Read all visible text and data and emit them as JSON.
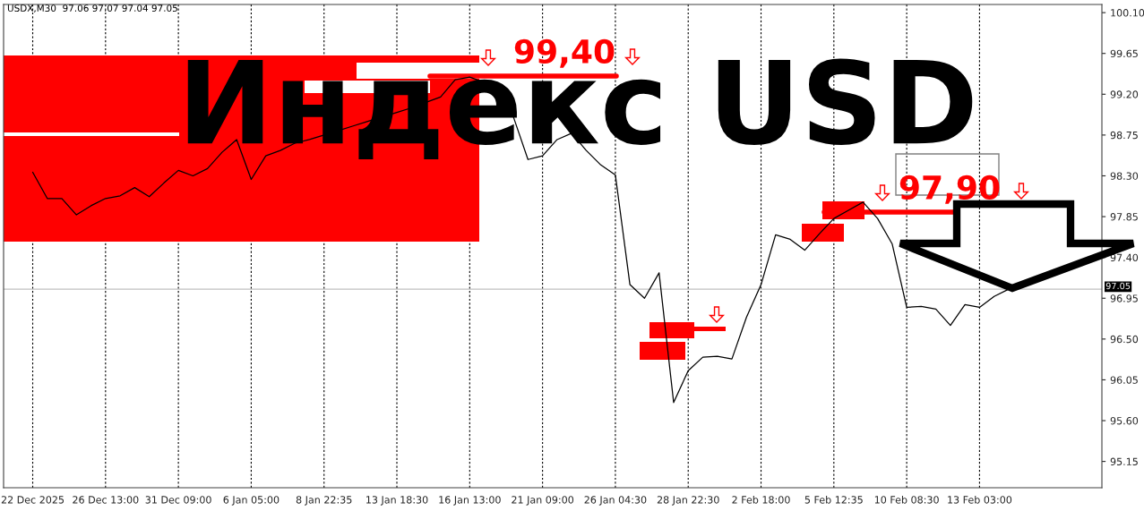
{
  "chart_data": {
    "type": "line",
    "title": "Индекс USD",
    "subtitle": "USDX,M30  97.06 97.07 97.04 97.05",
    "categories": [
      "22 Dec 2025",
      null,
      null,
      null,
      null,
      "26 Dec 13:00",
      null,
      null,
      null,
      null,
      "31 Dec 09:00",
      null,
      null,
      null,
      null,
      "6 Jan 05:00",
      null,
      null,
      null,
      null,
      "8 Jan 22:35",
      null,
      null,
      null,
      null,
      "13 Jan 18:30",
      null,
      null,
      null,
      null,
      "16 Jan 13:00",
      null,
      null,
      null,
      null,
      "21 Jan 09:00",
      null,
      null,
      null,
      null,
      "26 Jan 04:30",
      null,
      null,
      null,
      null,
      "28 Jan 22:30",
      null,
      null,
      null,
      null,
      "2 Feb 18:00",
      null,
      null,
      null,
      null,
      "5 Feb 12:35",
      null,
      null,
      null,
      null,
      "10 Feb 08:30",
      null,
      null,
      null,
      null,
      "13 Feb 03:00",
      null,
      null
    ],
    "series": [
      {
        "color": "#000000",
        "values": [
          98.34,
          98.05,
          98.05,
          97.87,
          97.97,
          98.05,
          98.08,
          98.17,
          98.07,
          98.22,
          98.36,
          98.3,
          98.38,
          98.56,
          98.7,
          98.26,
          98.52,
          98.58,
          98.66,
          98.7,
          98.75,
          98.8,
          98.85,
          98.9,
          98.95,
          99.0,
          99.05,
          99.11,
          99.17,
          99.36,
          99.39,
          99.33,
          99.12,
          98.95,
          98.48,
          98.52,
          98.7,
          98.77,
          98.58,
          98.42,
          98.31,
          97.1,
          96.95,
          97.23,
          95.8,
          96.15,
          96.3,
          96.31,
          96.28,
          96.74,
          97.1,
          97.65,
          97.6,
          97.48,
          97.66,
          97.83,
          97.92,
          98.01,
          97.83,
          97.55,
          96.85,
          96.86,
          96.83,
          96.65,
          96.88,
          96.85,
          96.97,
          97.05
        ]
      }
    ],
    "ylim": [
      94.86,
      100.19
    ],
    "yticks": [
      {
        "value": 100.1,
        "label": "100.10"
      },
      99.65,
      {
        "value": 99.2,
        "label": "99.20"
      },
      98.75,
      {
        "value": 98.3,
        "label": "98.30"
      },
      97.85,
      {
        "value": 97.4,
        "label": "97.40"
      },
      96.95,
      {
        "value": 96.5,
        "label": "96.50"
      },
      96.05,
      {
        "value": 95.6,
        "label": "95.60"
      },
      95.15
    ],
    "ref_lines": [
      {
        "axis": "y",
        "value": 97.05,
        "label": "97.05",
        "color": "#c0c0c0"
      },
      {
        "axis": "y",
        "value": 99.4,
        "label": "99,40",
        "color": "#ff0000"
      },
      {
        "axis": "y",
        "value": 97.9,
        "label": "97,90",
        "color": "#ff0000"
      }
    ],
    "grid": "x",
    "marker": "none",
    "line_style": "solid"
  }
}
